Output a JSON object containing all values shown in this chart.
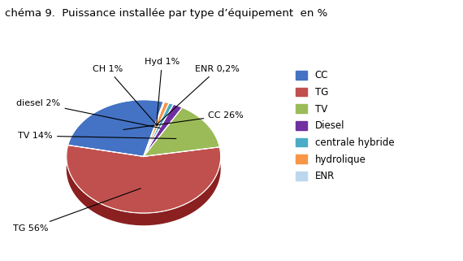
{
  "title": "chéma 9.  Puissance installée par type d’équipement  en %",
  "slices": [
    26,
    56,
    14,
    2,
    1,
    1,
    0.2
  ],
  "colors_top": [
    "#4472C4",
    "#C0504D",
    "#9BBB59",
    "#7030A0",
    "#4BACC6",
    "#F79646",
    "#BDD7EE"
  ],
  "colors_side": [
    "#2255A0",
    "#8B2020",
    "#6A8C30",
    "#4B1580",
    "#2A7A94",
    "#C06010",
    "#8AAFCC"
  ],
  "legend_labels": [
    "CC",
    "TG",
    "TV",
    "Diesel",
    "centrale hybride",
    "hydrolique",
    "ENR"
  ],
  "ann_labels": [
    "CC 26%",
    "TG 56%",
    "TV 14%",
    "diesel 2%",
    "CH 1%",
    "Hyd 1%",
    "ENR 0,2%"
  ],
  "startangle": 75,
  "depth": 0.12,
  "title_fontsize": 9.5,
  "legend_fontsize": 8.5,
  "ann_fontsize": 8
}
